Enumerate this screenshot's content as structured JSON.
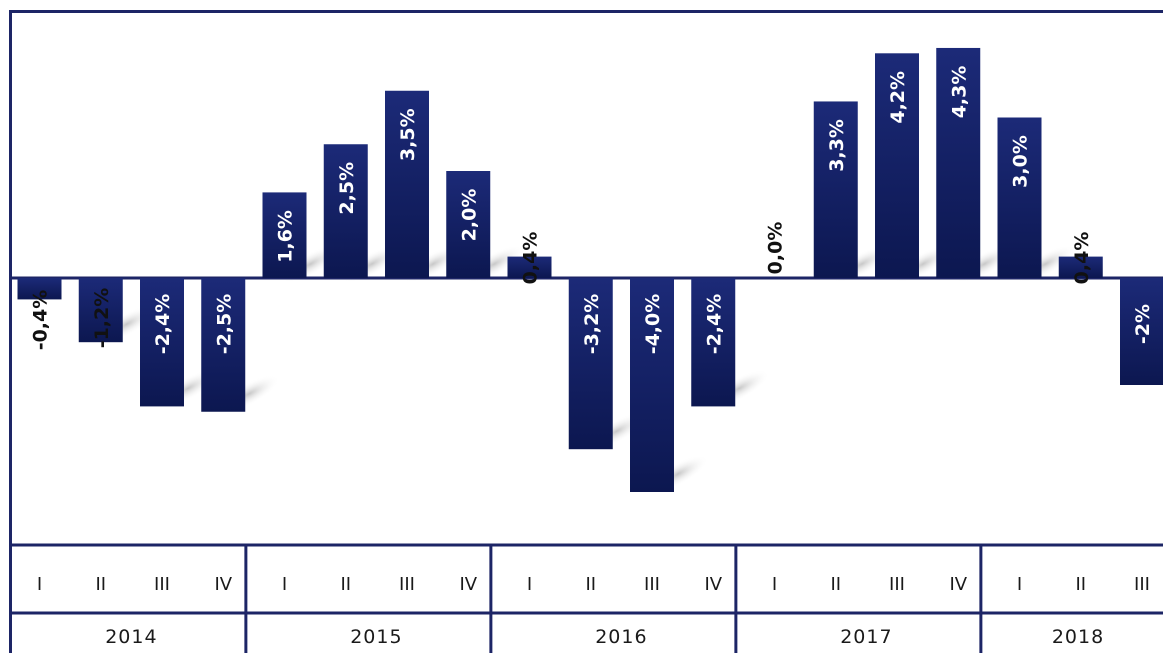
{
  "colors": {
    "bar": "#0f1b5c",
    "bar_top": "#1c2a78",
    "frame": "#1d2566",
    "text": "#111111"
  },
  "chart_data": {
    "type": "bar",
    "title": "",
    "xlabel": "",
    "ylabel": "",
    "ylim": [
      -5.0,
      5.2
    ],
    "grid": false,
    "legend": "none",
    "years": [
      {
        "year": "2014",
        "quarters": [
          "I",
          "II",
          "III",
          "IV"
        ]
      },
      {
        "year": "2015",
        "quarters": [
          "I",
          "II",
          "III",
          "IV"
        ]
      },
      {
        "year": "2016",
        "quarters": [
          "I",
          "II",
          "III",
          "IV"
        ]
      },
      {
        "year": "2017",
        "quarters": [
          "I",
          "II",
          "III",
          "IV"
        ]
      },
      {
        "year": "2018",
        "quarters": [
          "I",
          "II",
          "III"
        ]
      }
    ],
    "values": [
      -0.4,
      -1.2,
      -2.4,
      -2.5,
      1.6,
      2.5,
      3.5,
      2.0,
      0.4,
      -3.2,
      -4.0,
      -2.4,
      0.0,
      3.3,
      4.2,
      4.3,
      3.0,
      0.4,
      -2.0
    ],
    "data_labels": [
      "-0,4%",
      "-1,2%",
      "-2,4%",
      "-2,5%",
      "1,6%",
      "2,5%",
      "3,5%",
      "2,0%",
      "0,4%",
      "-3,2%",
      "-4,0%",
      "-2,4%",
      "0,0%",
      "3,3%",
      "4,2%",
      "4,3%",
      "3,0%",
      "0,4%",
      "-2%"
    ]
  }
}
